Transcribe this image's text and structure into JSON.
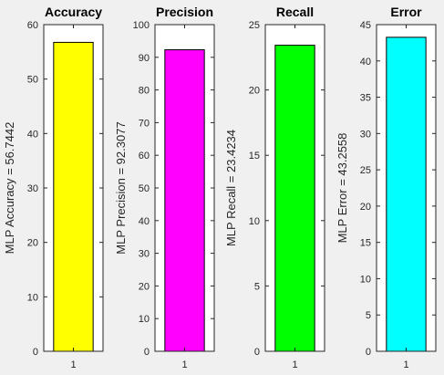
{
  "chart_data": [
    {
      "type": "bar",
      "title": "Accuracy",
      "categories": [
        "1"
      ],
      "values": [
        56.7442
      ],
      "ylabel": "MLP Accuracy = 56.7442",
      "ylim": [
        0,
        60
      ],
      "yticks": [
        "0",
        "10",
        "20",
        "30",
        "40",
        "50",
        "60"
      ],
      "color": "#ffff00",
      "grid": false
    },
    {
      "type": "bar",
      "title": "Precision",
      "categories": [
        "1"
      ],
      "values": [
        92.3077
      ],
      "ylabel": "MLP Precision = 92.3077",
      "ylim": [
        0,
        100
      ],
      "yticks": [
        "0",
        "10",
        "20",
        "30",
        "40",
        "50",
        "60",
        "70",
        "80",
        "90",
        "100"
      ],
      "color": "#ff00ff",
      "grid": false
    },
    {
      "type": "bar",
      "title": "Recall",
      "categories": [
        "1"
      ],
      "values": [
        23.4234
      ],
      "ylabel": "MLP Recall = 23.4234",
      "ylim": [
        0,
        25
      ],
      "yticks": [
        "0",
        "5",
        "10",
        "15",
        "20",
        "25"
      ],
      "color": "#00ff00",
      "grid": false
    },
    {
      "type": "bar",
      "title": "Error",
      "categories": [
        "1"
      ],
      "values": [
        43.2558
      ],
      "ylabel": "MLP Error = 43.2558",
      "ylim": [
        0,
        45
      ],
      "yticks": [
        "0",
        "5",
        "10",
        "15",
        "20",
        "25",
        "30",
        "35",
        "40",
        "45"
      ],
      "color": "#00ffff",
      "grid": false
    }
  ]
}
